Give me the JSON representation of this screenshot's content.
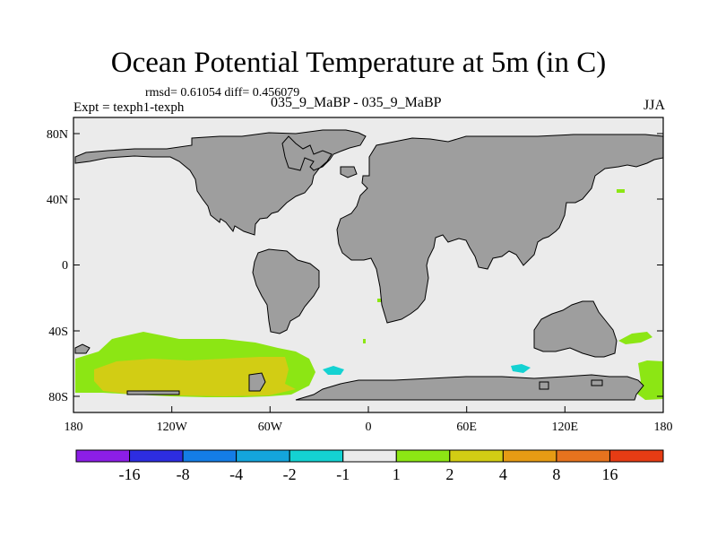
{
  "title": "Ocean Potential Temperature at 5m (in C)",
  "stats_text": "rmsd= 0.61054 diff= 0.456079",
  "experiment_text": "Expt = texph1-texph",
  "case_text": "035_9_MaBP - 035_9_MaBP",
  "season_text": "JJA",
  "map": {
    "projection": "cylindrical-equidistant",
    "lon_range": [
      -180,
      180
    ],
    "lat_range": [
      -90,
      90
    ],
    "land_color": "#9e9e9e",
    "ocean_color": "#ebebeb",
    "x_ticks": [
      "180",
      "120W",
      "60W",
      "0",
      "60E",
      "120E",
      "180"
    ],
    "y_ticks": [
      "80N",
      "40N",
      "0",
      "40S",
      "80S"
    ]
  },
  "colorbar": {
    "colors": [
      "#8c1ee6",
      "#2d2de1",
      "#147de6",
      "#14a5dc",
      "#14d2d2",
      "#ebebeb",
      "#8ce614",
      "#d2cd14",
      "#e69b14",
      "#e6731e",
      "#e63c14"
    ],
    "labels": [
      "-16",
      "-8",
      "-4",
      "-2",
      "-1",
      "1",
      "2",
      "4",
      "8",
      "16"
    ]
  }
}
